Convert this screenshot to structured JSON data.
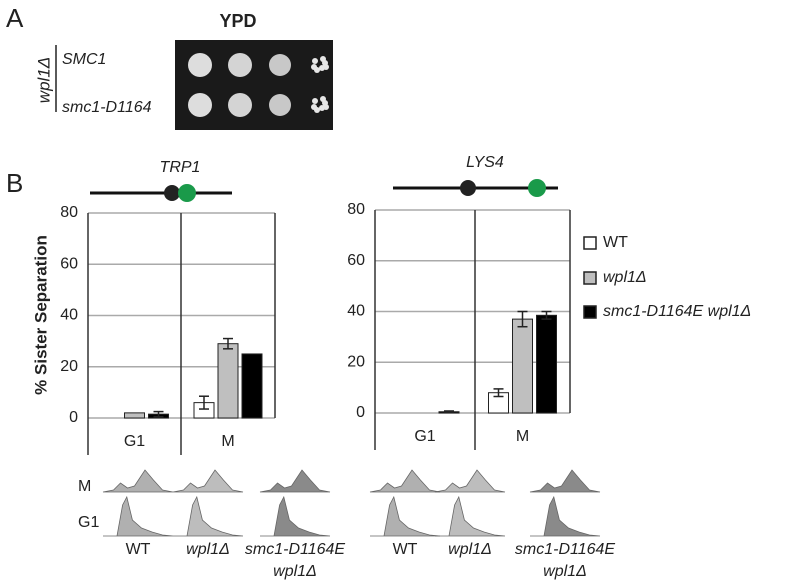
{
  "panel_a": {
    "label": "A",
    "title": "YPD",
    "genotype": "wpl1Δ",
    "strains": [
      "SMC1",
      "smc1-D1164"
    ]
  },
  "panel_b_label": "B",
  "y_label": "% Sister Separation",
  "chart_data": [
    {
      "type": "bar",
      "title": "TRP1",
      "categories": [
        "G1",
        "M"
      ],
      "ylim": [
        0,
        80
      ],
      "yticks": [
        0,
        20,
        40,
        60,
        80
      ],
      "grid": true,
      "series": [
        {
          "color": "#ffffff",
          "values": [
            0,
            6
          ],
          "errors": [
            null,
            2.5
          ]
        },
        {
          "color": "#bfbfbf",
          "values": [
            2,
            29
          ],
          "errors": [
            null,
            2
          ]
        },
        {
          "color": "#000000",
          "values": [
            1.5,
            25
          ],
          "errors": [
            1,
            null
          ]
        }
      ]
    },
    {
      "type": "bar",
      "title": "LYS4",
      "categories": [
        "G1",
        "M"
      ],
      "ylim": [
        0,
        80
      ],
      "yticks": [
        0,
        20,
        40,
        60,
        80
      ],
      "grid": true,
      "series": [
        {
          "name": "WT",
          "color": "#ffffff",
          "values": [
            0,
            8
          ],
          "errors": [
            null,
            1.5
          ]
        },
        {
          "name": "wpl1Δ",
          "color": "#bfbfbf",
          "values": [
            0,
            37
          ],
          "errors": [
            null,
            3
          ]
        },
        {
          "name": "smc1-D1164E wpl1Δ",
          "color": "#000000",
          "values": [
            0.5,
            38.5
          ],
          "errors": [
            0.3,
            1.5
          ]
        }
      ]
    }
  ],
  "flow": {
    "rows": [
      "M",
      "G1"
    ],
    "strains": [
      [
        "WT"
      ],
      [
        "wpl1Δ"
      ],
      [
        "smc1-D1164E",
        "wpl1Δ"
      ],
      [
        "WT"
      ],
      [
        "wpl1Δ"
      ],
      [
        "smc1-D1164E",
        "wpl1Δ"
      ]
    ]
  }
}
